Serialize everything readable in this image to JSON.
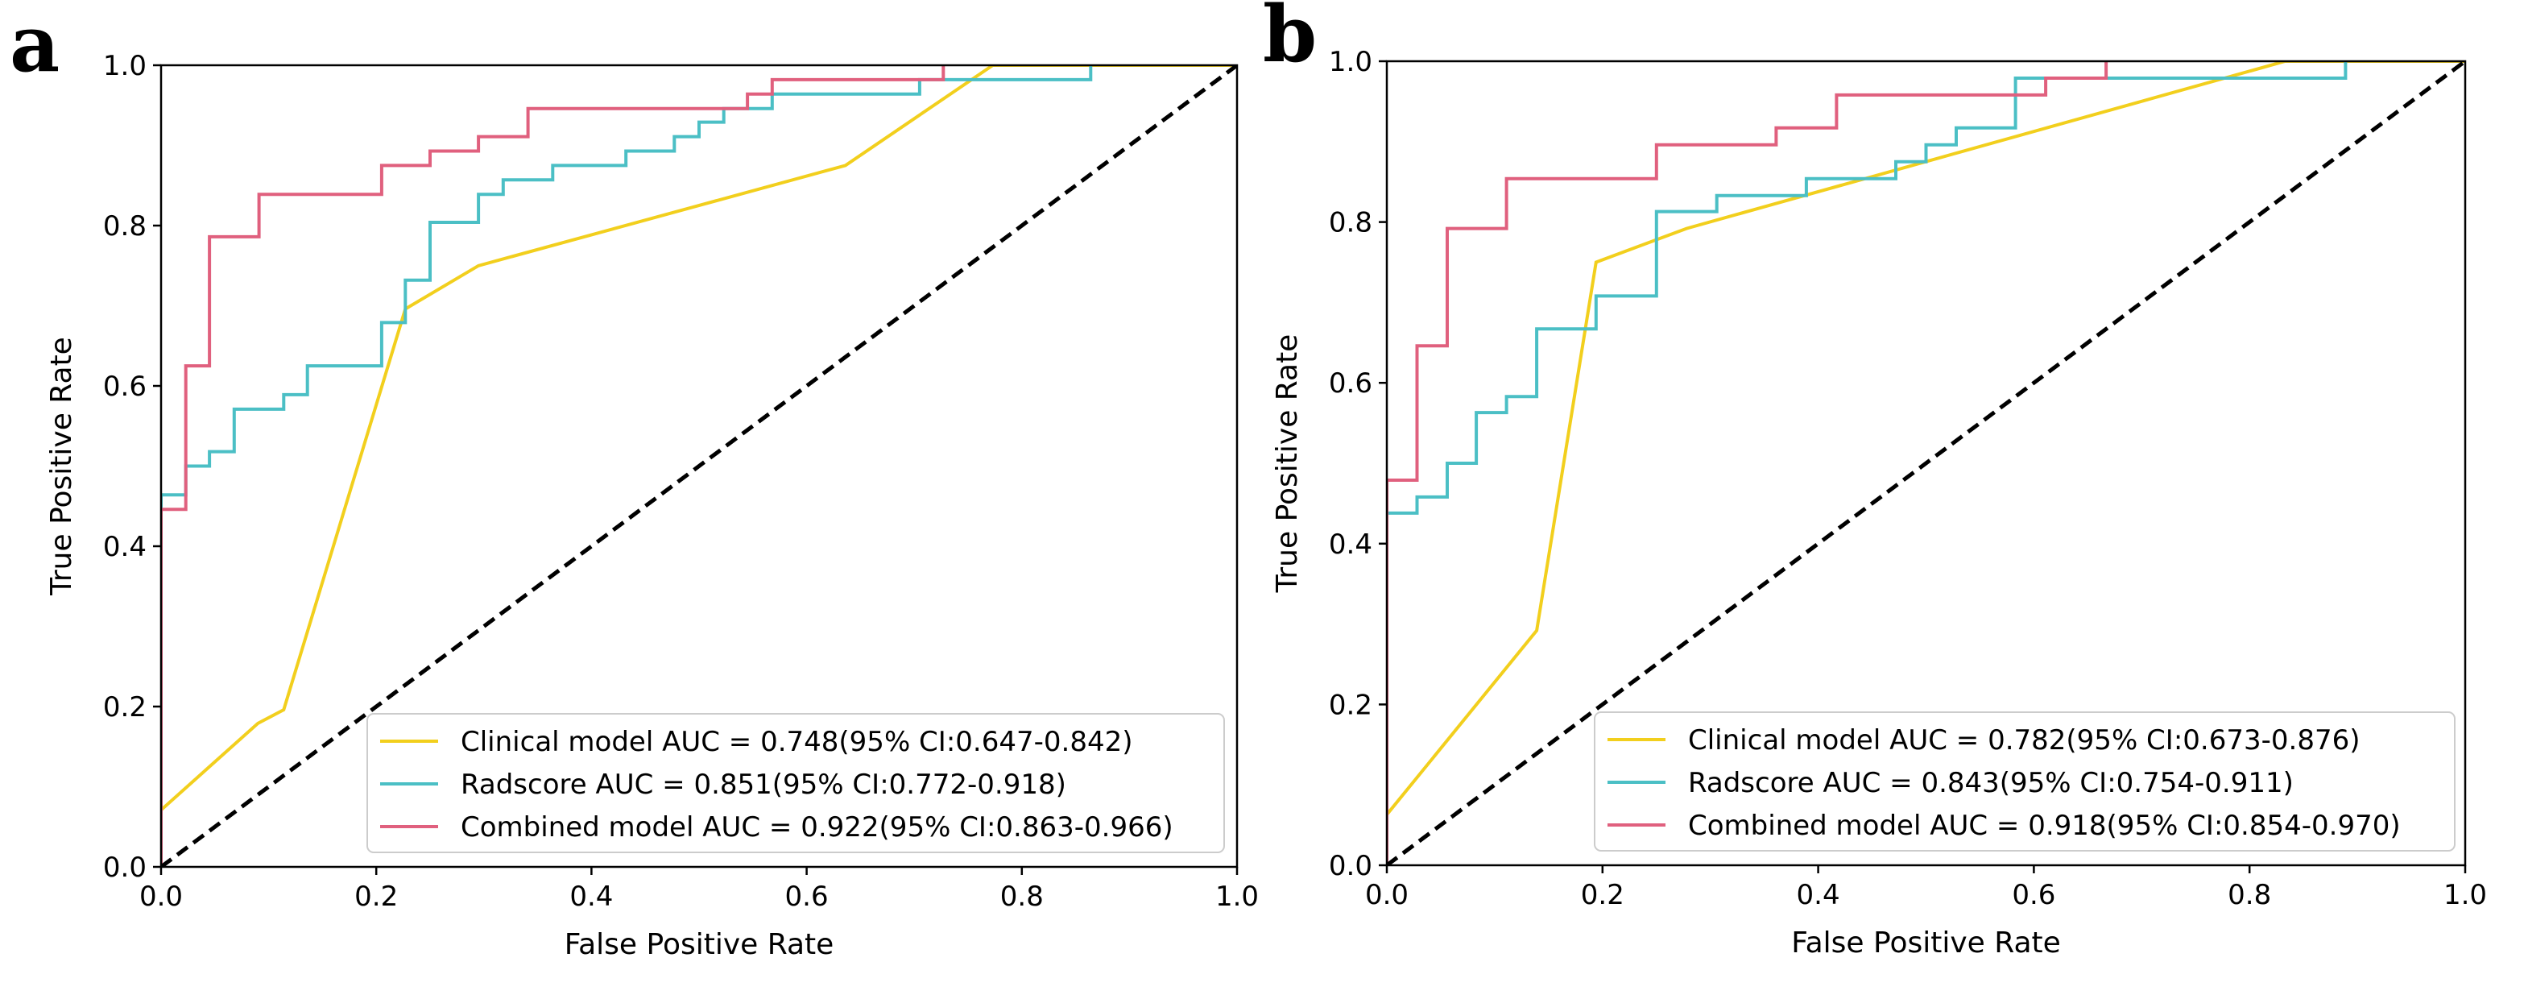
{
  "figure": {
    "panel_labels": [
      "a",
      "b"
    ]
  },
  "chart_data": [
    {
      "type": "line",
      "panel_label": "a",
      "title": "",
      "xlabel": "False Positive Rate",
      "ylabel": "True Positive Rate",
      "xlim": [
        0.0,
        1.0
      ],
      "ylim": [
        0.0,
        1.0
      ],
      "xticks": [
        "0.0",
        "0.2",
        "0.4",
        "0.6",
        "0.8",
        "1.0"
      ],
      "yticks": [
        "0.0",
        "0.2",
        "0.4",
        "0.6",
        "0.8",
        "1.0"
      ],
      "grid": false,
      "legend_position": "bottom-right",
      "series": [
        {
          "name": "Clinical model",
          "label": "Clinical model  AUC = 0.748(95% CI:0.647-0.842)",
          "color": "#f2cf1d",
          "style": "solid",
          "x": [
            0.0,
            0.09,
            0.114,
            0.227,
            0.295,
            0.636,
            0.773,
            1.0
          ],
          "y": [
            0.071,
            0.179,
            0.196,
            0.696,
            0.75,
            0.875,
            1.0,
            1.0
          ]
        },
        {
          "name": "Radscore",
          "label": "Radscore  AUC = 0.851(95% CI:0.772-0.918)",
          "color": "#4bbfc5",
          "style": "step",
          "x": [
            0.0,
            0.0,
            0.023,
            0.023,
            0.045,
            0.045,
            0.068,
            0.068,
            0.114,
            0.114,
            0.136,
            0.136,
            0.205,
            0.205,
            0.227,
            0.227,
            0.25,
            0.25,
            0.295,
            0.295,
            0.318,
            0.318,
            0.364,
            0.364,
            0.432,
            0.432,
            0.477,
            0.477,
            0.5,
            0.5,
            0.523,
            0.523,
            0.568,
            0.568,
            0.705,
            0.705,
            0.864,
            0.864
          ],
          "y": [
            0.0,
            0.464,
            0.464,
            0.5,
            0.5,
            0.518,
            0.518,
            0.571,
            0.571,
            0.589,
            0.589,
            0.625,
            0.625,
            0.679,
            0.679,
            0.732,
            0.732,
            0.804,
            0.804,
            0.839,
            0.839,
            0.857,
            0.857,
            0.875,
            0.875,
            0.893,
            0.893,
            0.911,
            0.911,
            0.929,
            0.929,
            0.946,
            0.946,
            0.964,
            0.964,
            0.982,
            0.982,
            1.0
          ]
        },
        {
          "name": "Combined model",
          "label": "Combined model  AUC = 0.922(95% CI:0.863-0.966)",
          "color": "#e0607e",
          "style": "step",
          "x": [
            0.0,
            0.0,
            0.023,
            0.023,
            0.045,
            0.045,
            0.091,
            0.091,
            0.205,
            0.205,
            0.25,
            0.25,
            0.295,
            0.295,
            0.341,
            0.341,
            0.545,
            0.545,
            0.568,
            0.568,
            0.727,
            0.727
          ],
          "y": [
            0.0,
            0.446,
            0.446,
            0.625,
            0.625,
            0.786,
            0.786,
            0.839,
            0.839,
            0.875,
            0.875,
            0.893,
            0.893,
            0.911,
            0.911,
            0.946,
            0.946,
            0.964,
            0.964,
            0.982,
            0.982,
            1.0
          ]
        },
        {
          "name": "Chance",
          "label": "",
          "color": "#000000",
          "style": "dashed",
          "x": [
            0.0,
            1.0
          ],
          "y": [
            0.0,
            1.0
          ]
        }
      ]
    },
    {
      "type": "line",
      "panel_label": "b",
      "title": "",
      "xlabel": "False Positive Rate",
      "ylabel": "True Positive Rate",
      "xlim": [
        0.0,
        1.0
      ],
      "ylim": [
        0.0,
        1.0
      ],
      "xticks": [
        "0.0",
        "0.2",
        "0.4",
        "0.6",
        "0.8",
        "1.0"
      ],
      "yticks": [
        "0.0",
        "0.2",
        "0.4",
        "0.6",
        "0.8",
        "1.0"
      ],
      "grid": false,
      "legend_position": "bottom-right",
      "series": [
        {
          "name": "Clinical model",
          "label": "Clinical model  AUC = 0.782(95% CI:0.673-0.876)",
          "color": "#f2cf1d",
          "style": "solid",
          "x": [
            0.0,
            0.139,
            0.194,
            0.278,
            0.833,
            1.0
          ],
          "y": [
            0.063,
            0.292,
            0.75,
            0.792,
            1.0,
            1.0
          ]
        },
        {
          "name": "Radscore",
          "label": "Radscore  AUC = 0.843(95% CI:0.754-0.911)",
          "color": "#4bbfc5",
          "style": "step",
          "x": [
            0.0,
            0.0,
            0.028,
            0.028,
            0.056,
            0.056,
            0.083,
            0.083,
            0.111,
            0.111,
            0.139,
            0.139,
            0.194,
            0.194,
            0.25,
            0.25,
            0.306,
            0.306,
            0.389,
            0.389,
            0.472,
            0.472,
            0.5,
            0.5,
            0.528,
            0.528,
            0.583,
            0.583,
            0.889,
            0.889
          ],
          "y": [
            0.0,
            0.438,
            0.438,
            0.458,
            0.458,
            0.5,
            0.5,
            0.563,
            0.563,
            0.583,
            0.583,
            0.667,
            0.667,
            0.708,
            0.708,
            0.813,
            0.813,
            0.833,
            0.833,
            0.854,
            0.854,
            0.875,
            0.875,
            0.896,
            0.896,
            0.917,
            0.917,
            0.979,
            0.979,
            1.0
          ]
        },
        {
          "name": "Combined model",
          "label": "Combined model  AUC = 0.918(95% CI:0.854-0.970)",
          "color": "#e0607e",
          "style": "step",
          "x": [
            0.0,
            0.0,
            0.028,
            0.028,
            0.056,
            0.056,
            0.111,
            0.111,
            0.25,
            0.25,
            0.361,
            0.361,
            0.417,
            0.417,
            0.611,
            0.611,
            0.667,
            0.667
          ],
          "y": [
            0.0,
            0.479,
            0.479,
            0.646,
            0.646,
            0.792,
            0.792,
            0.854,
            0.854,
            0.896,
            0.896,
            0.917,
            0.917,
            0.958,
            0.958,
            0.979,
            0.979,
            1.0
          ]
        },
        {
          "name": "Chance",
          "label": "",
          "color": "#000000",
          "style": "dashed",
          "x": [
            0.0,
            1.0
          ],
          "y": [
            0.0,
            1.0
          ]
        }
      ]
    }
  ]
}
